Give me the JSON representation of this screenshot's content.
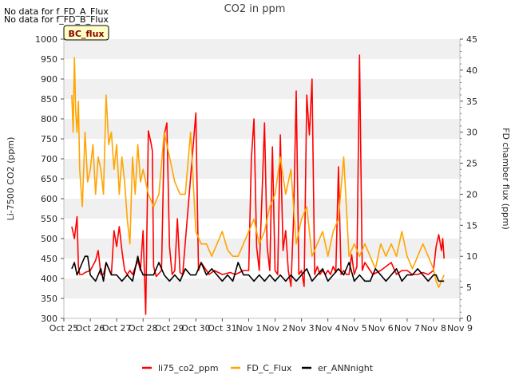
{
  "chart_data": {
    "type": "line",
    "title": "CO2 in ppm",
    "ylabel": "Li-7500 CO2 (ppm)",
    "y2label": "FD chamber flux (ppm)",
    "xlabel": "",
    "ylim": [
      300,
      1000
    ],
    "y2lim": [
      0,
      45
    ],
    "yticks": [
      300,
      350,
      400,
      450,
      500,
      550,
      600,
      650,
      700,
      750,
      800,
      850,
      900,
      950,
      1000
    ],
    "y2ticks": [
      0,
      5,
      10,
      15,
      20,
      25,
      30,
      35,
      40,
      45
    ],
    "xlim": [
      0,
      15
    ],
    "xticks": [
      {
        "value": 0,
        "label": "Oct 25"
      },
      {
        "value": 1,
        "label": "Oct 26"
      },
      {
        "value": 2,
        "label": "Oct 27"
      },
      {
        "value": 3,
        "label": "Oct 28"
      },
      {
        "value": 4,
        "label": "Oct 29"
      },
      {
        "value": 5,
        "label": "Oct 30"
      },
      {
        "value": 6,
        "label": "Oct 31"
      },
      {
        "value": 7,
        "label": "Nov 1"
      },
      {
        "value": 8,
        "label": "Nov 2"
      },
      {
        "value": 9,
        "label": "Nov 3"
      },
      {
        "value": 10,
        "label": "Nov 4"
      },
      {
        "value": 11,
        "label": "Nov 5"
      },
      {
        "value": 12,
        "label": "Nov 6"
      },
      {
        "value": 13,
        "label": "Nov 7"
      },
      {
        "value": 14,
        "label": "Nov 8"
      },
      {
        "value": 15,
        "label": "Nov 9"
      }
    ],
    "grid_bands": true,
    "legend_position": "bottom-center",
    "annotations": [
      "No data for f_FD_A_Flux",
      "No data for f_FD_B_Flux"
    ],
    "badge": "BC_flux",
    "series": [
      {
        "name": "li75_co2_ppm",
        "color": "#ff0000",
        "axis": "left",
        "x": [
          0.3,
          0.4,
          0.5,
          0.55,
          0.6,
          0.7,
          0.8,
          1.0,
          1.2,
          1.3,
          1.4,
          1.5,
          1.6,
          1.8,
          1.9,
          2.0,
          2.1,
          2.2,
          2.3,
          2.4,
          2.5,
          2.6,
          2.8,
          2.9,
          3.0,
          3.1,
          3.2,
          3.3,
          3.35,
          3.4,
          3.5,
          3.7,
          3.8,
          3.9,
          4.0,
          4.1,
          4.2,
          4.3,
          4.4,
          4.5,
          5.0,
          5.1,
          5.2,
          5.3,
          5.5,
          5.7,
          6.0,
          6.3,
          6.5,
          6.8,
          7.0,
          7.1,
          7.2,
          7.3,
          7.4,
          7.5,
          7.6,
          7.7,
          7.8,
          7.9,
          8.0,
          8.1,
          8.2,
          8.3,
          8.4,
          8.5,
          8.6,
          8.7,
          8.8,
          8.9,
          9.0,
          9.1,
          9.2,
          9.3,
          9.4,
          9.5,
          9.6,
          9.7,
          9.8,
          9.9,
          10.0,
          10.1,
          10.2,
          10.3,
          10.4,
          10.5,
          10.6,
          10.7,
          10.8,
          10.9,
          11.0,
          11.1,
          11.2,
          11.3,
          11.4,
          11.5,
          11.7,
          12.0,
          12.2,
          12.4,
          12.6,
          12.8,
          13.0,
          13.2,
          13.4,
          13.6,
          13.8,
          14.0,
          14.1,
          14.2,
          14.3,
          14.35,
          14.4
        ],
        "y": [
          530,
          500,
          555,
          430,
          410,
          410,
          415,
          420,
          445,
          470,
          410,
          410,
          440,
          410,
          520,
          480,
          530,
          470,
          420,
          410,
          420,
          410,
          445,
          420,
          520,
          310,
          770,
          740,
          720,
          430,
          405,
          420,
          760,
          790,
          480,
          410,
          420,
          550,
          415,
          410,
          815,
          420,
          440,
          430,
          410,
          420,
          410,
          415,
          410,
          420,
          420,
          700,
          800,
          480,
          420,
          600,
          790,
          480,
          420,
          730,
          420,
          410,
          760,
          470,
          520,
          420,
          380,
          550,
          870,
          410,
          420,
          380,
          860,
          760,
          900,
          410,
          430,
          410,
          420,
          410,
          420,
          410,
          430,
          415,
          680,
          410,
          420,
          410,
          410,
          460,
          410,
          430,
          960,
          420,
          440,
          430,
          410,
          420,
          430,
          440,
          410,
          420,
          420,
          410,
          410,
          415,
          410,
          420,
          480,
          510,
          470,
          500,
          450
        ]
      },
      {
        "name": "FD_C_Flux",
        "color": "#ffa500",
        "axis": "right",
        "x": [
          0.3,
          0.35,
          0.4,
          0.45,
          0.5,
          0.55,
          0.6,
          0.7,
          0.8,
          0.9,
          1.0,
          1.1,
          1.2,
          1.3,
          1.4,
          1.5,
          1.6,
          1.7,
          1.8,
          1.9,
          2.0,
          2.1,
          2.2,
          2.3,
          2.4,
          2.5,
          2.6,
          2.7,
          2.8,
          2.9,
          3.0,
          3.2,
          3.4,
          3.6,
          3.8,
          4.0,
          4.2,
          4.4,
          4.6,
          4.8,
          5.0,
          5.2,
          5.4,
          5.6,
          5.8,
          6.0,
          6.2,
          6.4,
          6.6,
          6.8,
          7.0,
          7.2,
          7.4,
          7.6,
          7.8,
          8.0,
          8.2,
          8.4,
          8.6,
          8.8,
          9.0,
          9.2,
          9.4,
          9.6,
          9.8,
          10.0,
          10.2,
          10.4,
          10.6,
          10.8,
          11.0,
          11.2,
          11.4,
          11.6,
          11.8,
          12.0,
          12.2,
          12.4,
          12.6,
          12.8,
          13.0,
          13.2,
          13.4,
          13.6,
          13.8,
          14.0,
          14.1,
          14.2,
          14.3,
          14.4
        ],
        "y": [
          36,
          30,
          42,
          33,
          30,
          35,
          24,
          18,
          30,
          22,
          24,
          28,
          20,
          26,
          24,
          20,
          36,
          28,
          30,
          24,
          28,
          20,
          26,
          22,
          16,
          12,
          26,
          20,
          28,
          22,
          24,
          20,
          18,
          20,
          30,
          26,
          22,
          20,
          20,
          30,
          14,
          12,
          12,
          10,
          12,
          14,
          11,
          10,
          10,
          12,
          14,
          16,
          12,
          14,
          18,
          20,
          26,
          20,
          24,
          12,
          16,
          18,
          10,
          12,
          14,
          10,
          14,
          16,
          26,
          10,
          12,
          10,
          12,
          10,
          8,
          12,
          10,
          12,
          10,
          14,
          10,
          8,
          10,
          12,
          10,
          8,
          6,
          5,
          6,
          7
        ]
      },
      {
        "name": "er_ANNnight",
        "color": "#000000",
        "axis": "right",
        "x": [
          0.3,
          0.4,
          0.5,
          0.6,
          0.7,
          0.8,
          0.9,
          1.0,
          1.2,
          1.4,
          1.5,
          1.6,
          1.8,
          2.0,
          2.2,
          2.4,
          2.6,
          2.8,
          2.9,
          3.0,
          3.2,
          3.4,
          3.6,
          3.8,
          4.0,
          4.2,
          4.4,
          4.6,
          4.8,
          5.0,
          5.2,
          5.4,
          5.6,
          5.8,
          6.0,
          6.2,
          6.4,
          6.6,
          6.8,
          7.0,
          7.2,
          7.4,
          7.6,
          7.8,
          8.0,
          8.2,
          8.4,
          8.6,
          8.8,
          9.0,
          9.2,
          9.4,
          9.6,
          9.8,
          10.0,
          10.2,
          10.4,
          10.6,
          10.8,
          11.0,
          11.2,
          11.4,
          11.6,
          11.8,
          12.0,
          12.2,
          12.4,
          12.6,
          12.8,
          13.0,
          13.2,
          13.4,
          13.6,
          13.8,
          14.0,
          14.1,
          14.2,
          14.3,
          14.4
        ],
        "y": [
          8,
          9,
          7,
          8,
          9,
          10,
          10,
          7,
          6,
          8,
          6,
          9,
          7,
          7,
          6,
          7,
          6,
          10,
          8,
          7,
          7,
          7,
          9,
          7,
          6,
          7,
          6,
          8,
          7,
          7,
          9,
          7,
          8,
          7,
          6,
          7,
          6,
          9,
          7,
          7,
          6,
          7,
          6,
          7,
          6,
          7,
          6,
          7,
          6,
          7,
          8,
          6,
          7,
          8,
          6,
          7,
          8,
          7,
          9,
          6,
          7,
          6,
          6,
          8,
          7,
          6,
          7,
          8,
          6,
          7,
          7,
          8,
          7,
          6,
          7,
          7,
          6,
          6,
          6
        ]
      }
    ]
  }
}
